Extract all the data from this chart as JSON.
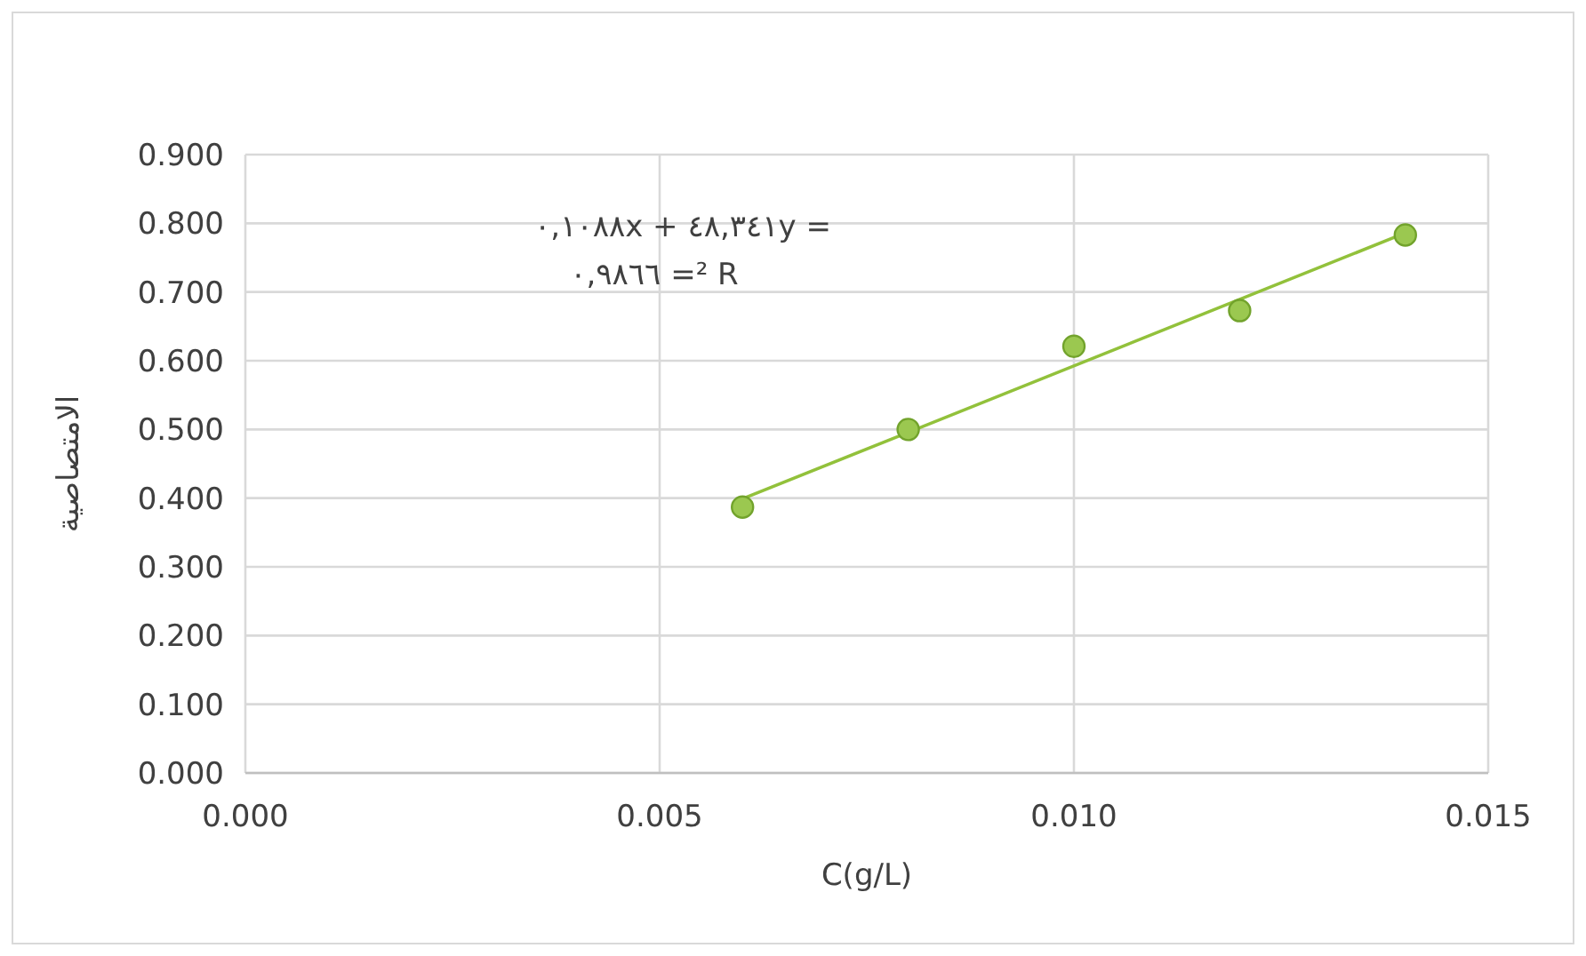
{
  "chart_data": {
    "type": "scatter",
    "xlabel": "C(g/L)",
    "ylabel": "الامتصاصية",
    "xlim": [
      0,
      0.015
    ],
    "xticks": [
      {
        "value": 0,
        "label": "0.000"
      },
      {
        "value": 0.005,
        "label": "0.005"
      },
      {
        "value": 0.01,
        "label": "0.010"
      },
      {
        "value": 0.015,
        "label": "0.015"
      }
    ],
    "ylim": [
      0,
      0.9
    ],
    "yticks": [
      {
        "value": 0,
        "label": "0.000"
      },
      {
        "value": 0.1,
        "label": "0.100"
      },
      {
        "value": 0.2,
        "label": "0.200"
      },
      {
        "value": 0.3,
        "label": "0.300"
      },
      {
        "value": 0.4,
        "label": "0.400"
      },
      {
        "value": 0.5,
        "label": "0.500"
      },
      {
        "value": 0.6,
        "label": "0.600"
      },
      {
        "value": 0.7,
        "label": "0.700"
      },
      {
        "value": 0.8,
        "label": "0.800"
      },
      {
        "value": 0.9,
        "label": "0.900"
      }
    ],
    "grid": true,
    "marker": "circle",
    "series": [
      {
        "type": "line",
        "color": "#92c13b",
        "x": [
          0.006,
          0.014
        ],
        "values": [
          0.399,
          0.786
        ],
        "marker": "none"
      },
      {
        "type": "scatter",
        "color": "#9bc850",
        "x": [
          0.006,
          0.008,
          0.01,
          0.012,
          0.014
        ],
        "values": [
          0.387,
          0.5,
          0.621,
          0.673,
          0.783
        ]
      }
    ],
    "annotations": [
      "٠,١٠٨٨x + ٤٨,٣٤١y =",
      "٠,٩٨٦٦ =² R"
    ]
  }
}
